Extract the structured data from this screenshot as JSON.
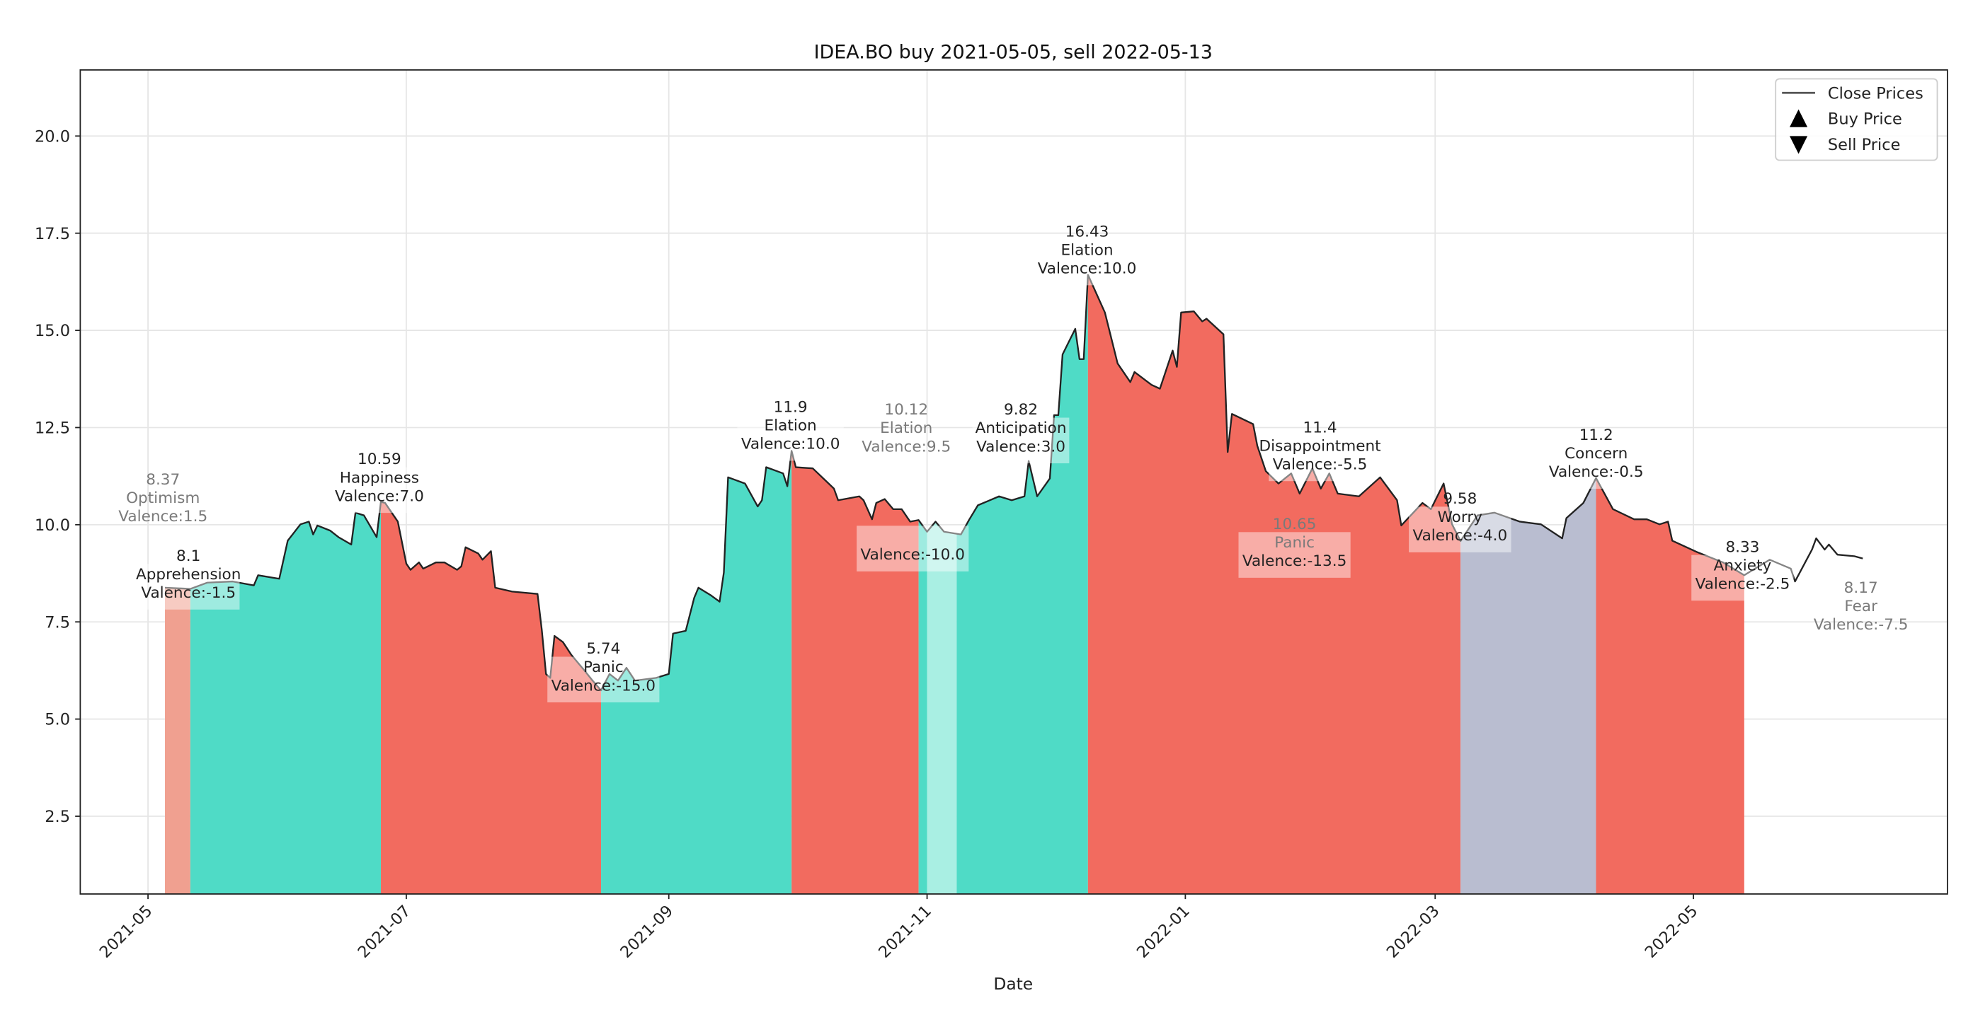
{
  "chart_data": {
    "type": "area",
    "title": "IDEA.BO buy 2021-05-05, sell 2022-05-13",
    "xlabel": "Date",
    "ylabel": "",
    "xlim": [
      "2021-04-15",
      "2022-06-30"
    ],
    "ylim": [
      0.5,
      21.7
    ],
    "grid": true,
    "legend_position": "top-right",
    "legend": [
      {
        "label": "Close Prices",
        "marker": "line"
      },
      {
        "label": "Buy Price",
        "marker": "triangle-up"
      },
      {
        "label": "Sell Price",
        "marker": "triangle-down"
      }
    ],
    "y_ticks": [
      "2.5",
      "5.0",
      "7.5",
      "10.0",
      "12.5",
      "15.0",
      "17.5",
      "20.0"
    ],
    "x_ticks": [
      "2021-05",
      "2021-07",
      "2021-09",
      "2021-11",
      "2022-01",
      "2022-03",
      "2022-05"
    ],
    "colors": {
      "positive": "#4fdbc6",
      "positive_light": "#a9efe3",
      "negative": "#f26b5f",
      "negative_light": "#f0a090",
      "neutral": "#b9bdd0",
      "line": "#222222"
    },
    "series": [
      {
        "name": "Close Prices",
        "points": [
          [
            "2021-05-05",
            8.38
          ],
          [
            "2021-05-11",
            8.35
          ],
          [
            "2021-05-15",
            8.51
          ],
          [
            "2021-05-21",
            8.54
          ],
          [
            "2021-05-26",
            8.44
          ],
          [
            "2021-05-27",
            8.7
          ],
          [
            "2021-06-01",
            8.61
          ],
          [
            "2021-06-03",
            9.59
          ],
          [
            "2021-06-06",
            10.01
          ],
          [
            "2021-06-08",
            10.08
          ],
          [
            "2021-06-09",
            9.75
          ],
          [
            "2021-06-10",
            9.98
          ],
          [
            "2021-06-13",
            9.85
          ],
          [
            "2021-06-15",
            9.68
          ],
          [
            "2021-06-18",
            9.49
          ],
          [
            "2021-06-19",
            10.31
          ],
          [
            "2021-06-21",
            10.24
          ],
          [
            "2021-06-24",
            9.68
          ],
          [
            "2021-06-25",
            10.59
          ],
          [
            "2021-06-26",
            10.56
          ],
          [
            "2021-06-28",
            10.24
          ],
          [
            "2021-06-29",
            10.08
          ],
          [
            "2021-07-01",
            9.0
          ],
          [
            "2021-07-02",
            8.84
          ],
          [
            "2021-07-04",
            9.03
          ],
          [
            "2021-07-05",
            8.87
          ],
          [
            "2021-07-08",
            9.03
          ],
          [
            "2021-07-10",
            9.03
          ],
          [
            "2021-07-13",
            8.84
          ],
          [
            "2021-07-14",
            8.93
          ],
          [
            "2021-07-15",
            9.42
          ],
          [
            "2021-07-18",
            9.26
          ],
          [
            "2021-07-19",
            9.1
          ],
          [
            "2021-07-21",
            9.32
          ],
          [
            "2021-07-22",
            8.38
          ],
          [
            "2021-07-26",
            8.28
          ],
          [
            "2021-08-01",
            8.22
          ],
          [
            "2021-08-02",
            7.3
          ],
          [
            "2021-08-03",
            6.16
          ],
          [
            "2021-08-04",
            6.06
          ],
          [
            "2021-08-05",
            7.14
          ],
          [
            "2021-08-07",
            6.98
          ],
          [
            "2021-08-09",
            6.65
          ],
          [
            "2021-08-12",
            6.26
          ],
          [
            "2021-08-14",
            5.99
          ],
          [
            "2021-08-16",
            5.74
          ],
          [
            "2021-08-18",
            6.16
          ],
          [
            "2021-08-20",
            5.99
          ],
          [
            "2021-08-22",
            6.32
          ],
          [
            "2021-08-24",
            5.99
          ],
          [
            "2021-08-29",
            6.06
          ],
          [
            "2021-09-01",
            6.16
          ],
          [
            "2021-09-02",
            7.2
          ],
          [
            "2021-09-05",
            7.27
          ],
          [
            "2021-09-07",
            8.12
          ],
          [
            "2021-09-08",
            8.38
          ],
          [
            "2021-09-11",
            8.18
          ],
          [
            "2021-09-13",
            8.02
          ],
          [
            "2021-09-14",
            8.77
          ],
          [
            "2021-09-15",
            11.22
          ],
          [
            "2021-09-19",
            11.06
          ],
          [
            "2021-09-22",
            10.47
          ],
          [
            "2021-09-23",
            10.63
          ],
          [
            "2021-09-24",
            11.48
          ],
          [
            "2021-09-28",
            11.32
          ],
          [
            "2021-09-29",
            10.99
          ],
          [
            "2021-09-30",
            11.9
          ],
          [
            "2021-10-01",
            11.48
          ],
          [
            "2021-10-05",
            11.45
          ],
          [
            "2021-10-10",
            10.93
          ],
          [
            "2021-10-11",
            10.63
          ],
          [
            "2021-10-16",
            10.73
          ],
          [
            "2021-10-17",
            10.63
          ],
          [
            "2021-10-19",
            10.14
          ],
          [
            "2021-10-20",
            10.56
          ],
          [
            "2021-10-22",
            10.66
          ],
          [
            "2021-10-24",
            10.4
          ],
          [
            "2021-10-26",
            10.4
          ],
          [
            "2021-10-28",
            10.08
          ],
          [
            "2021-10-30",
            10.12
          ],
          [
            "2021-11-01",
            9.82
          ],
          [
            "2021-11-03",
            10.08
          ],
          [
            "2021-11-05",
            9.82
          ],
          [
            "2021-11-09",
            9.75
          ],
          [
            "2021-11-11",
            10.14
          ],
          [
            "2021-11-13",
            10.5
          ],
          [
            "2021-11-18",
            10.73
          ],
          [
            "2021-11-21",
            10.63
          ],
          [
            "2021-11-24",
            10.73
          ],
          [
            "2021-11-25",
            11.64
          ],
          [
            "2021-11-27",
            10.73
          ],
          [
            "2021-11-30",
            11.19
          ],
          [
            "2021-12-01",
            12.82
          ],
          [
            "2021-12-02",
            12.82
          ],
          [
            "2021-12-03",
            14.38
          ],
          [
            "2021-12-06",
            15.04
          ],
          [
            "2021-12-07",
            14.26
          ],
          [
            "2021-12-08",
            14.26
          ],
          [
            "2021-12-09",
            16.43
          ],
          [
            "2021-12-13",
            15.46
          ],
          [
            "2021-12-16",
            14.15
          ],
          [
            "2021-12-19",
            13.67
          ],
          [
            "2021-12-20",
            13.93
          ],
          [
            "2021-12-24",
            13.6
          ],
          [
            "2021-12-26",
            13.5
          ],
          [
            "2021-12-29",
            14.48
          ],
          [
            "2021-12-30",
            14.06
          ],
          [
            "2021-12-31",
            15.46
          ],
          [
            "2022-01-03",
            15.49
          ],
          [
            "2022-01-05",
            15.23
          ],
          [
            "2022-01-06",
            15.3
          ],
          [
            "2022-01-10",
            14.9
          ],
          [
            "2022-01-11",
            11.87
          ],
          [
            "2022-01-12",
            12.85
          ],
          [
            "2022-01-17",
            12.59
          ],
          [
            "2022-01-18",
            12.03
          ],
          [
            "2022-01-20",
            11.38
          ],
          [
            "2022-01-23",
            11.06
          ],
          [
            "2022-01-26",
            11.32
          ],
          [
            "2022-01-28",
            10.8
          ],
          [
            "2022-01-31",
            11.45
          ],
          [
            "2022-02-02",
            10.93
          ],
          [
            "2022-02-04",
            11.32
          ],
          [
            "2022-02-06",
            10.8
          ],
          [
            "2022-02-11",
            10.73
          ],
          [
            "2022-02-16",
            11.22
          ],
          [
            "2022-02-20",
            10.63
          ],
          [
            "2022-02-21",
            9.98
          ],
          [
            "2022-02-26",
            10.56
          ],
          [
            "2022-02-28",
            10.4
          ],
          [
            "2022-03-03",
            11.06
          ],
          [
            "2022-03-05",
            10.01
          ],
          [
            "2022-03-07",
            9.58
          ],
          [
            "2022-03-11",
            10.24
          ],
          [
            "2022-03-15",
            10.31
          ],
          [
            "2022-03-21",
            10.08
          ],
          [
            "2022-03-26",
            10.01
          ],
          [
            "2022-03-31",
            9.65
          ],
          [
            "2022-04-01",
            10.17
          ],
          [
            "2022-04-05",
            10.56
          ],
          [
            "2022-04-08",
            11.2
          ],
          [
            "2022-04-12",
            10.4
          ],
          [
            "2022-04-17",
            10.14
          ],
          [
            "2022-04-20",
            10.14
          ],
          [
            "2022-04-23",
            10.01
          ],
          [
            "2022-04-25",
            10.08
          ],
          [
            "2022-04-26",
            9.59
          ],
          [
            "2022-05-02",
            9.29
          ],
          [
            "2022-05-08",
            9.03
          ],
          [
            "2022-05-13",
            8.7
          ],
          [
            "2022-05-19",
            9.1
          ],
          [
            "2022-05-24",
            8.87
          ],
          [
            "2022-05-25",
            8.54
          ],
          [
            "2022-05-29",
            9.36
          ],
          [
            "2022-05-30",
            9.65
          ],
          [
            "2022-06-01",
            9.36
          ],
          [
            "2022-06-02",
            9.49
          ],
          [
            "2022-06-04",
            9.23
          ],
          [
            "2022-06-08",
            9.19
          ],
          [
            "2022-06-10",
            9.13
          ]
        ]
      }
    ],
    "regions": [
      {
        "start": "2021-05-05",
        "end": "2021-05-11",
        "color": "#f0a090"
      },
      {
        "start": "2021-05-11",
        "end": "2021-06-25",
        "color": "#4fdbc6"
      },
      {
        "start": "2021-06-25",
        "end": "2021-08-16",
        "color": "#f26b5f"
      },
      {
        "start": "2021-08-16",
        "end": "2021-09-30",
        "color": "#4fdbc6"
      },
      {
        "start": "2021-09-30",
        "end": "2021-10-30",
        "color": "#f26b5f"
      },
      {
        "start": "2021-10-30",
        "end": "2021-11-01",
        "color": "#4fdbc6"
      },
      {
        "start": "2021-11-01",
        "end": "2021-11-08",
        "color": "#a9efe3"
      },
      {
        "start": "2021-11-08",
        "end": "2021-12-09",
        "color": "#4fdbc6"
      },
      {
        "start": "2021-12-09",
        "end": "2022-03-07",
        "color": "#f26b5f"
      },
      {
        "start": "2022-03-07",
        "end": "2022-04-08",
        "color": "#b9bdd0"
      },
      {
        "start": "2022-04-08",
        "end": "2022-05-13",
        "color": "#f26b5f"
      }
    ],
    "annotations": [
      {
        "value": "8.37",
        "emotion": "Optimism",
        "valence": "Valence:1.5",
        "faded": true
      },
      {
        "value": "8.1",
        "emotion": "Apprehension",
        "valence": "Valence:-1.5",
        "faded": false
      },
      {
        "value": "10.59",
        "emotion": "Happiness",
        "valence": "Valence:7.0",
        "faded": false
      },
      {
        "value": "5.74",
        "emotion": "Panic",
        "valence": "Valence:-15.0",
        "faded": false
      },
      {
        "value": "11.9",
        "emotion": "Elation",
        "valence": "Valence:10.0",
        "faded": false
      },
      {
        "value": "10.12",
        "emotion": "Elation",
        "valence": "Valence:9.5",
        "faded": true
      },
      {
        "value": "",
        "emotion": "",
        "valence": "Valence:-10.0",
        "faded": false
      },
      {
        "value": "9.82",
        "emotion": "Anticipation",
        "valence": "Valence:3.0",
        "faded": false
      },
      {
        "value": "16.43",
        "emotion": "Elation",
        "valence": "Valence:10.0",
        "faded": false
      },
      {
        "value": "11.4",
        "emotion": "Disappointment",
        "valence": "Valence:-5.5",
        "faded": false
      },
      {
        "value": "10.65",
        "emotion": "Panic",
        "valence": "Valence:-13.5",
        "faded": true
      },
      {
        "value": "9.58",
        "emotion": "Worry",
        "valence": "Valence:-4.0",
        "faded": false
      },
      {
        "value": "11.2",
        "emotion": "Concern",
        "valence": "Valence:-0.5",
        "faded": false
      },
      {
        "value": "8.33",
        "emotion": "Anxiety",
        "valence": "Valence:-2.5",
        "faded": false
      },
      {
        "value": "8.17",
        "emotion": "Fear",
        "valence": "Valence:-7.5",
        "faded": true
      }
    ]
  }
}
